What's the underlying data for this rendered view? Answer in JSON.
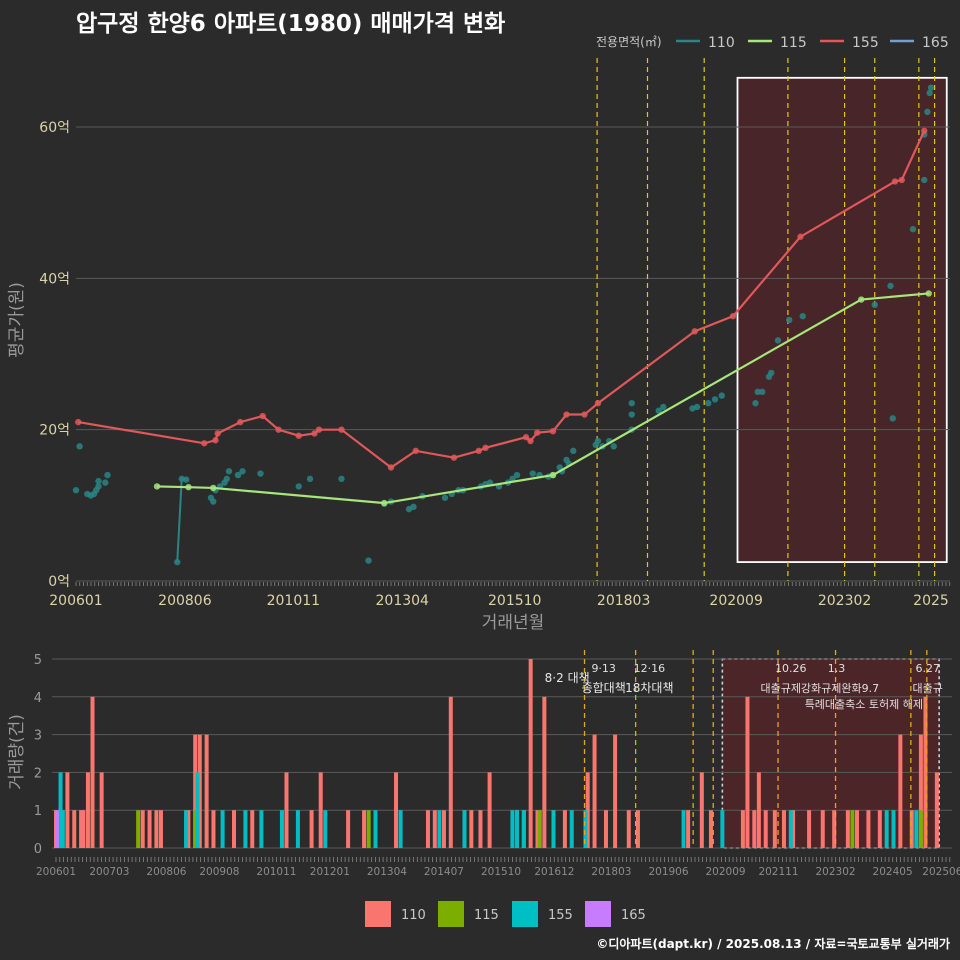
{
  "title": "압구정 한양6 아파트(1980) 매매가격 변화",
  "credit": "©디아파트(dapt.kr) / 2025.08.13 / 자료=국토교통부 실거래가",
  "chart_data": [
    {
      "type": "line",
      "xlabel": "거래년월",
      "ylabel": "평균가(원)",
      "xtick_labels": [
        "200601",
        "200806",
        "201011",
        "201304",
        "201510",
        "201803",
        "202009",
        "202302",
        "2025"
      ],
      "ytick_labels": [
        "0억",
        "20억",
        "40억",
        "60억"
      ],
      "ylim": [
        0,
        67
      ],
      "legend_title": "전용면적(㎡)",
      "legend_position": "top-right",
      "series": [
        {
          "name": "110",
          "color": "#2a8585",
          "points": [
            [
              2006.08,
              17.8
            ],
            [
              2006.0,
              12
            ],
            [
              2006.25,
              11.5
            ],
            [
              2006.33,
              11.3
            ],
            [
              2006.4,
              11.5
            ],
            [
              2006.45,
              12
            ],
            [
              2006.5,
              13.2
            ],
            [
              2006.5,
              12.5
            ],
            [
              2006.65,
              13
            ],
            [
              2006.7,
              14
            ],
            [
              2008.25,
              2.5
            ],
            [
              2008.35,
              13.5
            ],
            [
              2008.45,
              13.4
            ],
            [
              2009.0,
              11
            ],
            [
              2009.05,
              10.5
            ],
            [
              2009.1,
              12
            ],
            [
              2009.2,
              12.5
            ],
            [
              2009.3,
              13
            ],
            [
              2009.35,
              13.5
            ],
            [
              2009.4,
              14.5
            ],
            [
              2009.6,
              14
            ],
            [
              2009.7,
              14.5
            ],
            [
              2010.1,
              14.2
            ],
            [
              2010.95,
              12.5
            ],
            [
              2011.2,
              13.5
            ],
            [
              2011.9,
              13.5
            ],
            [
              2012.5,
              2.7
            ],
            [
              2012.85,
              10.2
            ],
            [
              2013.0,
              10.5
            ],
            [
              2013.4,
              9.5
            ],
            [
              2013.5,
              9.8
            ],
            [
              2013.7,
              11.2
            ],
            [
              2014.2,
              11
            ],
            [
              2014.35,
              11.5
            ],
            [
              2014.5,
              12
            ],
            [
              2014.6,
              12
            ],
            [
              2015.0,
              12.5
            ],
            [
              2015.1,
              12.8
            ],
            [
              2015.2,
              13
            ],
            [
              2015.4,
              12.5
            ],
            [
              2015.6,
              13
            ],
            [
              2015.7,
              13.5
            ],
            [
              2015.8,
              14
            ],
            [
              2016.15,
              14.2
            ],
            [
              2016.3,
              14
            ],
            [
              2016.5,
              13.8
            ],
            [
              2016.6,
              14
            ],
            [
              2016.75,
              15
            ],
            [
              2016.8,
              14.5
            ],
            [
              2016.9,
              16
            ],
            [
              2016.95,
              15.5
            ],
            [
              2017.05,
              17.2
            ],
            [
              2017.55,
              18
            ],
            [
              2017.6,
              18.5
            ],
            [
              2017.7,
              17.8
            ],
            [
              2017.85,
              18.5
            ],
            [
              2017.95,
              17.8
            ],
            [
              2018.35,
              23.5
            ],
            [
              2018.35,
              22
            ],
            [
              2018.35,
              20
            ],
            [
              2018.95,
              22.5
            ],
            [
              2019.05,
              23
            ],
            [
              2019.7,
              22.8
            ],
            [
              2019.8,
              23
            ],
            [
              2020.05,
              23.5
            ],
            [
              2020.2,
              24
            ],
            [
              2020.35,
              24.5
            ],
            [
              2021.1,
              23.5
            ],
            [
              2021.15,
              25
            ],
            [
              2021.25,
              25
            ],
            [
              2021.4,
              27
            ],
            [
              2021.45,
              27.5
            ],
            [
              2021.6,
              31.8
            ],
            [
              2021.85,
              34.5
            ],
            [
              2022.15,
              35
            ],
            [
              2023.75,
              36.5
            ],
            [
              2024.1,
              39
            ],
            [
              2024.15,
              21.5
            ],
            [
              2024.6,
              46.5
            ],
            [
              2024.85,
              53
            ],
            [
              2024.85,
              59
            ],
            [
              2024.92,
              62
            ],
            [
              2024.97,
              64.5
            ],
            [
              2025.0,
              65.2
            ]
          ]
        },
        {
          "name": "115",
          "color": "#a6e67a",
          "points": [
            [
              2007.8,
              12.5
            ],
            [
              2008.5,
              12.4
            ],
            [
              2009.05,
              12.3
            ],
            [
              2012.85,
              10.3
            ],
            [
              2016.6,
              14
            ],
            [
              2023.45,
              37.2
            ],
            [
              2024.95,
              38
            ]
          ]
        },
        {
          "name": "155",
          "color": "#e0585a",
          "points": [
            [
              2006.05,
              21
            ],
            [
              2008.85,
              18.2
            ],
            [
              2009.1,
              18.6
            ],
            [
              2009.15,
              19.5
            ],
            [
              2009.65,
              21
            ],
            [
              2010.15,
              21.8
            ],
            [
              2010.5,
              20
            ],
            [
              2010.95,
              19.2
            ],
            [
              2011.3,
              19.5
            ],
            [
              2011.4,
              20
            ],
            [
              2011.9,
              20
            ],
            [
              2013.0,
              15
            ],
            [
              2013.55,
              17.2
            ],
            [
              2014.4,
              16.3
            ],
            [
              2014.95,
              17.2
            ],
            [
              2015.1,
              17.6
            ],
            [
              2016.0,
              19
            ],
            [
              2016.1,
              18.5
            ],
            [
              2016.25,
              19.6
            ],
            [
              2016.6,
              19.8
            ],
            [
              2016.9,
              22
            ],
            [
              2017.3,
              22
            ],
            [
              2017.6,
              23.5
            ],
            [
              2019.75,
              33
            ],
            [
              2020.6,
              35
            ],
            [
              2022.1,
              45.5
            ],
            [
              2024.2,
              52.8
            ],
            [
              2024.35,
              53
            ],
            [
              2024.85,
              59.5
            ]
          ]
        },
        {
          "name": "165",
          "color": "#7b9dc9",
          "points": []
        }
      ],
      "policy_lines": [
        2017.58,
        2018.7,
        2019.96,
        2021.82,
        2023.08,
        2023.75,
        2024.73,
        2025.08
      ],
      "highlight_box": {
        "x0": 2020.7,
        "x1": 2025.35,
        "y0": 2.5,
        "y1": 66.5
      }
    },
    {
      "type": "bar",
      "ylabel": "거래량(건)",
      "xtick_labels": [
        "200601",
        "200703",
        "200806",
        "200908",
        "201011",
        "201201",
        "201304",
        "201407",
        "201510",
        "201612",
        "201803",
        "201906",
        "202009",
        "202111",
        "202302",
        "202405",
        "202506"
      ],
      "ytick_labels": [
        "0",
        "1",
        "2",
        "3",
        "4",
        "5"
      ],
      "ylim": [
        0,
        5
      ],
      "legend_position": "bottom",
      "series": [
        {
          "name": "110",
          "color": "#f8766d",
          "bars": [
            [
              2006.0,
              1
            ],
            [
              2006.1,
              1
            ],
            [
              2006.25,
              2
            ],
            [
              2006.4,
              1
            ],
            [
              2006.55,
              1
            ],
            [
              2006.6,
              1
            ],
            [
              2006.7,
              2
            ],
            [
              2006.8,
              4
            ],
            [
              2007.0,
              2
            ],
            [
              2007.9,
              1
            ],
            [
              2008.05,
              1
            ],
            [
              2008.2,
              1
            ],
            [
              2008.3,
              1
            ],
            [
              2008.9,
              1
            ],
            [
              2009.05,
              3
            ],
            [
              2009.15,
              3
            ],
            [
              2009.3,
              3
            ],
            [
              2009.45,
              1
            ],
            [
              2009.9,
              1
            ],
            [
              2010.3,
              1
            ],
            [
              2011.05,
              2
            ],
            [
              2011.6,
              1
            ],
            [
              2011.8,
              2
            ],
            [
              2012.4,
              1
            ],
            [
              2012.75,
              1
            ],
            [
              2013.45,
              2
            ],
            [
              2014.15,
              1
            ],
            [
              2014.3,
              1
            ],
            [
              2014.5,
              1
            ],
            [
              2014.65,
              4
            ],
            [
              2014.95,
              1
            ],
            [
              2015.1,
              1
            ],
            [
              2015.3,
              1
            ],
            [
              2015.5,
              2
            ],
            [
              2016.1,
              1
            ],
            [
              2016.25,
              1
            ],
            [
              2016.4,
              5
            ],
            [
              2016.55,
              1
            ],
            [
              2016.7,
              4
            ],
            [
              2016.9,
              1
            ],
            [
              2017.15,
              1
            ],
            [
              2017.65,
              2
            ],
            [
              2017.8,
              3
            ],
            [
              2018.05,
              1
            ],
            [
              2018.25,
              3
            ],
            [
              2018.55,
              1
            ],
            [
              2018.75,
              1
            ],
            [
              2019.85,
              1
            ],
            [
              2020.15,
              2
            ],
            [
              2020.35,
              1
            ],
            [
              2021.05,
              1
            ],
            [
              2021.15,
              4
            ],
            [
              2021.3,
              1
            ],
            [
              2021.4,
              2
            ],
            [
              2021.55,
              1
            ],
            [
              2021.75,
              1
            ],
            [
              2021.95,
              1
            ],
            [
              2022.15,
              1
            ],
            [
              2022.5,
              1
            ],
            [
              2022.8,
              1
            ],
            [
              2023.05,
              1
            ],
            [
              2023.35,
              1
            ],
            [
              2023.55,
              1
            ],
            [
              2023.8,
              1
            ],
            [
              2024.05,
              1
            ],
            [
              2024.5,
              3
            ],
            [
              2024.75,
              1
            ],
            [
              2024.95,
              3
            ],
            [
              2025.05,
              4
            ],
            [
              2025.3,
              2
            ]
          ]
        },
        {
          "name": "115",
          "color": "#7cae00",
          "bars": [
            [
              2007.8,
              1
            ],
            [
              2009.05,
              1
            ],
            [
              2012.85,
              1
            ],
            [
              2016.6,
              1
            ],
            [
              2023.45,
              1
            ],
            [
              2024.95,
              1
            ]
          ]
        },
        {
          "name": "155",
          "color": "#00bfc4",
          "bars": [
            [
              2006.1,
              2
            ],
            [
              2006.15,
              1
            ],
            [
              2008.85,
              1
            ],
            [
              2009.1,
              2
            ],
            [
              2009.65,
              1
            ],
            [
              2010.15,
              1
            ],
            [
              2010.5,
              1
            ],
            [
              2010.95,
              1
            ],
            [
              2011.3,
              1
            ],
            [
              2011.9,
              1
            ],
            [
              2013.0,
              1
            ],
            [
              2013.55,
              1
            ],
            [
              2014.4,
              1
            ],
            [
              2014.95,
              1
            ],
            [
              2016.0,
              1
            ],
            [
              2016.1,
              1
            ],
            [
              2016.25,
              1
            ],
            [
              2016.9,
              1
            ],
            [
              2017.3,
              1
            ],
            [
              2017.6,
              1
            ],
            [
              2019.75,
              1
            ],
            [
              2020.6,
              1
            ],
            [
              2022.1,
              1
            ],
            [
              2024.2,
              1
            ],
            [
              2024.35,
              1
            ],
            [
              2024.85,
              1
            ]
          ]
        },
        {
          "name": "165",
          "color": "#c77cff",
          "bars": [
            [
              2006.02,
              1
            ]
          ]
        }
      ],
      "policy_lines": [
        2017.58,
        2018.7,
        2019.96,
        2020.4,
        2021.82,
        2023.08,
        2024.73,
        2025.08
      ],
      "policy_labels": [
        {
          "x": 2017.2,
          "row": 1,
          "text": "8·2 대책"
        },
        {
          "x": 2018.0,
          "row": 0,
          "text": "9·13"
        },
        {
          "x": 2018.0,
          "row": 2,
          "text": "종합대책"
        },
        {
          "x": 2019.0,
          "row": 0,
          "text": "12·16"
        },
        {
          "x": 2019.0,
          "row": 2,
          "text": "18차대책"
        },
        {
          "x": 2022.1,
          "row": 0,
          "text": "10.26"
        },
        {
          "x": 2022.1,
          "row": 2,
          "text": "대출규제강화"
        },
        {
          "x": 2023.1,
          "row": 0,
          "text": "1.3"
        },
        {
          "x": 2023.4,
          "row": 2,
          "text": "규제완화9.7"
        },
        {
          "x": 2023.7,
          "row": 3,
          "text": "특례대출축소 토허제 해제"
        },
        {
          "x": 2025.1,
          "row": 0,
          "text": "6.27"
        },
        {
          "x": 2025.1,
          "row": 2,
          "text": "대출규"
        }
      ],
      "highlight_box": {
        "x0": 2020.6,
        "x1": 2025.35
      }
    }
  ]
}
